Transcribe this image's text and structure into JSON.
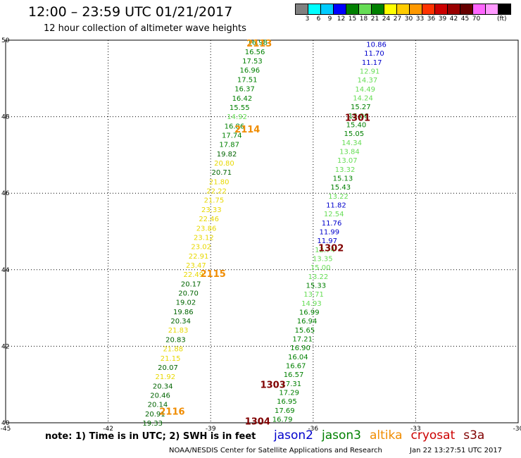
{
  "header": {
    "title": "12:00 – 23:59 UTC 01/21/2017",
    "subtitle": "12 hour collection of altimeter wave heights"
  },
  "colorbar": {
    "colors": [
      "#808080",
      "#00ffff",
      "#00ccff",
      "#0000ff",
      "#008000",
      "#66dd55",
      "#008000",
      "#ffff00",
      "#ffcc00",
      "#ff9900",
      "#ff3300",
      "#cc0000",
      "#990000",
      "#660000",
      "#ff66ff",
      "#ff99ff",
      "#000000"
    ],
    "ticks": [
      "3",
      "6",
      "9",
      "12",
      "15",
      "18",
      "21",
      "24",
      "27",
      "30",
      "33",
      "36",
      "39",
      "42",
      "45",
      "70"
    ],
    "unit": "(ft)"
  },
  "axes": {
    "x_ticks": [
      "-45",
      "-42",
      "-39",
      "-36",
      "-33",
      "-30"
    ],
    "y_ticks": [
      "50",
      "48",
      "46",
      "44",
      "42",
      "40"
    ]
  },
  "passes": [
    {
      "id": "2113",
      "lon": -37.95,
      "lat": 49.93,
      "color": "#f08c00"
    },
    {
      "id": "2114",
      "lon": -38.3,
      "lat": 47.68,
      "color": "#f08c00"
    },
    {
      "id": "2115",
      "lon": -39.3,
      "lat": 43.9,
      "color": "#f08c00"
    },
    {
      "id": "2116",
      "lon": -40.5,
      "lat": 40.3,
      "color": "#f08c00"
    },
    {
      "id": "1301",
      "lon": -35.07,
      "lat": 47.98,
      "color": "#800000"
    },
    {
      "id": "1302",
      "lon": -35.85,
      "lat": 44.58,
      "color": "#800000"
    },
    {
      "id": "1303",
      "lon": -37.55,
      "lat": 41.0,
      "color": "#800000"
    },
    {
      "id": "1304",
      "lon": -38.0,
      "lat": 40.05,
      "color": "#800000"
    }
  ],
  "tracks": [
    {
      "lon0": -37.63,
      "lat0": 49.95,
      "lon1": -40.7,
      "lat1": 40.0,
      "labels": [
        {
          "v": "16.98",
          "c": "#008000"
        },
        {
          "v": "16.56",
          "c": "#008000"
        },
        {
          "v": "17.53",
          "c": "#008000"
        },
        {
          "v": "16.96",
          "c": "#008000"
        },
        {
          "v": "17.51",
          "c": "#008000"
        },
        {
          "v": "16.37",
          "c": "#008000"
        },
        {
          "v": "16.42",
          "c": "#008000"
        },
        {
          "v": "15.55",
          "c": "#008000"
        },
        {
          "v": "14.92",
          "c": "#66dd55"
        },
        {
          "v": "16.86",
          "c": "#008000"
        },
        {
          "v": "17.74",
          "c": "#008000"
        },
        {
          "v": "17.87",
          "c": "#008000"
        },
        {
          "v": "19.82",
          "c": "#006400"
        },
        {
          "v": "20.80",
          "c": "#e8d800"
        },
        {
          "v": "20.71",
          "c": "#006400"
        },
        {
          "v": "21.80",
          "c": "#e8d800"
        },
        {
          "v": "22.22",
          "c": "#e8d800"
        },
        {
          "v": "21.75",
          "c": "#e8d800"
        },
        {
          "v": "23.33",
          "c": "#e8d800"
        },
        {
          "v": "22.46",
          "c": "#e8d800"
        },
        {
          "v": "23.86",
          "c": "#e8d800"
        },
        {
          "v": "23.12",
          "c": "#e8d800"
        },
        {
          "v": "23.02",
          "c": "#e8d800"
        },
        {
          "v": "22.91",
          "c": "#e8d800"
        },
        {
          "v": "23.47",
          "c": "#e8d800"
        },
        {
          "v": "22.49",
          "c": "#e8d800"
        },
        {
          "v": "20.17",
          "c": "#006400"
        },
        {
          "v": "20.70",
          "c": "#006400"
        },
        {
          "v": "19.02",
          "c": "#006400"
        },
        {
          "v": "19.86",
          "c": "#006400"
        },
        {
          "v": "20.34",
          "c": "#006400"
        },
        {
          "v": "21.83",
          "c": "#e8d800"
        },
        {
          "v": "20.83",
          "c": "#006400"
        },
        {
          "v": "21.88",
          "c": "#e8d800"
        },
        {
          "v": "21.15",
          "c": "#e8d800"
        },
        {
          "v": "20.07",
          "c": "#006400"
        },
        {
          "v": "21.92",
          "c": "#e8d800"
        },
        {
          "v": "20.34",
          "c": "#006400"
        },
        {
          "v": "20.46",
          "c": "#006400"
        },
        {
          "v": "20.14",
          "c": "#006400"
        },
        {
          "v": "20.91",
          "c": "#006400"
        },
        {
          "v": "19.33",
          "c": "#006400"
        }
      ]
    },
    {
      "lon0": -34.15,
      "lat0": 49.9,
      "lon1": -36.9,
      "lat1": 40.1,
      "labels": [
        {
          "v": "10.86",
          "c": "#0000cc"
        },
        {
          "v": "11.70",
          "c": "#0000cc"
        },
        {
          "v": "11.17",
          "c": "#0000cc"
        },
        {
          "v": "12.91",
          "c": "#66dd55"
        },
        {
          "v": "14.37",
          "c": "#66dd55"
        },
        {
          "v": "14.49",
          "c": "#66dd55"
        },
        {
          "v": "14.24",
          "c": "#66dd55"
        },
        {
          "v": "15.27",
          "c": "#008000"
        },
        {
          "v": "15.06",
          "c": "#008000"
        },
        {
          "v": "15.40",
          "c": "#008000"
        },
        {
          "v": "15.05",
          "c": "#008000"
        },
        {
          "v": "14.34",
          "c": "#66dd55"
        },
        {
          "v": "13.84",
          "c": "#66dd55"
        },
        {
          "v": "13.07",
          "c": "#66dd55"
        },
        {
          "v": "13.32",
          "c": "#66dd55"
        },
        {
          "v": "15.13",
          "c": "#008000"
        },
        {
          "v": "15.43",
          "c": "#008000"
        },
        {
          "v": "13.22",
          "c": "#66dd55"
        },
        {
          "v": "11.82",
          "c": "#0000cc"
        },
        {
          "v": "12.54",
          "c": "#66dd55"
        },
        {
          "v": "11.76",
          "c": "#0000cc"
        },
        {
          "v": "11.99",
          "c": "#0000cc"
        },
        {
          "v": "11.97",
          "c": "#0000cc"
        },
        {
          "v": "12.74",
          "c": "#66dd55"
        },
        {
          "v": "13.35",
          "c": "#66dd55"
        },
        {
          "v": "15.00",
          "c": "#66dd55"
        },
        {
          "v": "13.22",
          "c": "#66dd55"
        },
        {
          "v": "15.33",
          "c": "#008000"
        },
        {
          "v": "13.71",
          "c": "#66dd55"
        },
        {
          "v": "14.93",
          "c": "#66dd55"
        },
        {
          "v": "16.99",
          "c": "#008000"
        },
        {
          "v": "16.94",
          "c": "#008000"
        },
        {
          "v": "15.65",
          "c": "#008000"
        },
        {
          "v": "17.21",
          "c": "#008000"
        },
        {
          "v": "16.90",
          "c": "#008000"
        },
        {
          "v": "16.04",
          "c": "#008000"
        },
        {
          "v": "16.67",
          "c": "#008000"
        },
        {
          "v": "16.57",
          "c": "#008000"
        },
        {
          "v": "17.31",
          "c": "#008000"
        },
        {
          "v": "17.29",
          "c": "#008000"
        },
        {
          "v": "16.95",
          "c": "#008000"
        },
        {
          "v": "17.69",
          "c": "#008000"
        },
        {
          "v": "16.79",
          "c": "#008000"
        }
      ]
    }
  ],
  "footer": {
    "note": "note: 1) Time is in UTC; 2) SWH is in feet",
    "legend": [
      {
        "name": "jason2",
        "color": "#0000cc"
      },
      {
        "name": "jason3",
        "color": "#008000"
      },
      {
        "name": "altika",
        "color": "#f08c00"
      },
      {
        "name": "cryosat",
        "color": "#cc0000"
      },
      {
        "name": "s3a",
        "color": "#800000"
      }
    ],
    "credit": "NOAA/NESDIS Center for Satellite Applications and Research",
    "date": "Jan 22 13:27:51 UTC 2017"
  }
}
